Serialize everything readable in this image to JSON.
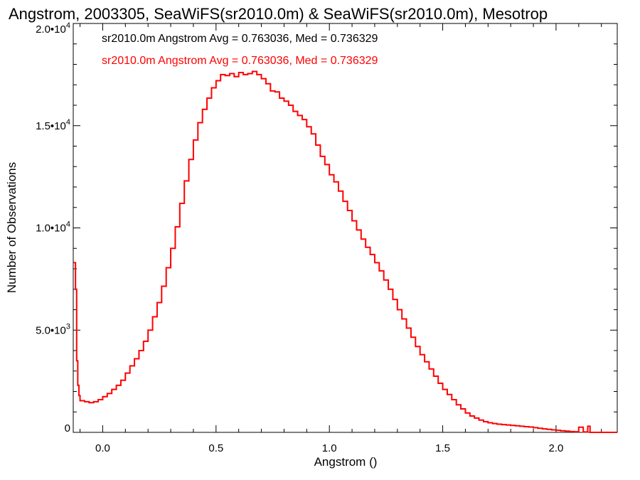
{
  "chart_data": {
    "type": "histogram",
    "title": "Angstrom, 2003305, SeaWiFS(sr2010.0m) & SeaWiFS(sr2010.0m), Mesotrop",
    "xlabel": "Angstrom ()",
    "ylabel": "Number of Observations",
    "xlim": [
      -0.13,
      2.27
    ],
    "ylim": [
      0,
      20000
    ],
    "x_ticks": [
      {
        "value": 0.0,
        "label": "0.0"
      },
      {
        "value": 0.5,
        "label": "0.5"
      },
      {
        "value": 1.0,
        "label": "1.0"
      },
      {
        "value": 1.5,
        "label": "1.5"
      },
      {
        "value": 2.0,
        "label": "2.0"
      }
    ],
    "y_ticks": [
      {
        "value": 0,
        "mantissa": "0",
        "exp": ""
      },
      {
        "value": 5000,
        "mantissa": "5.0•10",
        "exp": "3"
      },
      {
        "value": 10000,
        "mantissa": "1.0•10",
        "exp": "4"
      },
      {
        "value": 15000,
        "mantissa": "1.5•10",
        "exp": "4"
      },
      {
        "value": 20000,
        "mantissa": "2.0•10",
        "exp": "4"
      }
    ],
    "grid": false,
    "legend": [
      {
        "text": "sr2010.0m Angstrom Avg = 0.763036, Med = 0.736329",
        "color": "#000000"
      },
      {
        "text": "sr2010.0m Angstrom Avg = 0.763036, Med = 0.736329",
        "color": "#ff0000"
      }
    ],
    "series": [
      {
        "color": "#ff0000",
        "points": [
          [
            -0.13,
            8300
          ],
          [
            -0.12,
            7000
          ],
          [
            -0.115,
            3500
          ],
          [
            -0.11,
            2300
          ],
          [
            -0.105,
            1800
          ],
          [
            -0.1,
            1550
          ],
          [
            -0.08,
            1500
          ],
          [
            -0.06,
            1450
          ],
          [
            -0.04,
            1500
          ],
          [
            -0.02,
            1600
          ],
          [
            0.0,
            1750
          ],
          [
            0.02,
            1900
          ],
          [
            0.04,
            2100
          ],
          [
            0.06,
            2300
          ],
          [
            0.08,
            2550
          ],
          [
            0.1,
            2900
          ],
          [
            0.12,
            3250
          ],
          [
            0.14,
            3600
          ],
          [
            0.16,
            4000
          ],
          [
            0.18,
            4450
          ],
          [
            0.2,
            5000
          ],
          [
            0.22,
            5650
          ],
          [
            0.24,
            6350
          ],
          [
            0.26,
            7150
          ],
          [
            0.28,
            8050
          ],
          [
            0.3,
            9000
          ],
          [
            0.32,
            10050
          ],
          [
            0.34,
            11200
          ],
          [
            0.36,
            12300
          ],
          [
            0.38,
            13350
          ],
          [
            0.4,
            14300
          ],
          [
            0.42,
            15150
          ],
          [
            0.44,
            15800
          ],
          [
            0.46,
            16350
          ],
          [
            0.48,
            16850
          ],
          [
            0.5,
            17200
          ],
          [
            0.52,
            17500
          ],
          [
            0.54,
            17450
          ],
          [
            0.56,
            17550
          ],
          [
            0.58,
            17400
          ],
          [
            0.6,
            17600
          ],
          [
            0.62,
            17500
          ],
          [
            0.64,
            17550
          ],
          [
            0.66,
            17650
          ],
          [
            0.68,
            17500
          ],
          [
            0.7,
            17300
          ],
          [
            0.72,
            17050
          ],
          [
            0.74,
            16700
          ],
          [
            0.76,
            16650
          ],
          [
            0.78,
            16350
          ],
          [
            0.8,
            16200
          ],
          [
            0.82,
            16000
          ],
          [
            0.84,
            15700
          ],
          [
            0.86,
            15500
          ],
          [
            0.88,
            15300
          ],
          [
            0.9,
            14950
          ],
          [
            0.92,
            14600
          ],
          [
            0.94,
            14050
          ],
          [
            0.96,
            13500
          ],
          [
            0.98,
            13100
          ],
          [
            1.0,
            12600
          ],
          [
            1.02,
            12250
          ],
          [
            1.04,
            11800
          ],
          [
            1.06,
            11300
          ],
          [
            1.08,
            10850
          ],
          [
            1.1,
            10350
          ],
          [
            1.12,
            9900
          ],
          [
            1.14,
            9450
          ],
          [
            1.16,
            9050
          ],
          [
            1.18,
            8700
          ],
          [
            1.2,
            8300
          ],
          [
            1.22,
            7900
          ],
          [
            1.24,
            7450
          ],
          [
            1.26,
            7000
          ],
          [
            1.28,
            6500
          ],
          [
            1.3,
            6000
          ],
          [
            1.32,
            5550
          ],
          [
            1.34,
            5100
          ],
          [
            1.36,
            4650
          ],
          [
            1.38,
            4200
          ],
          [
            1.4,
            3800
          ],
          [
            1.42,
            3450
          ],
          [
            1.44,
            3100
          ],
          [
            1.46,
            2750
          ],
          [
            1.48,
            2400
          ],
          [
            1.5,
            2100
          ],
          [
            1.52,
            1850
          ],
          [
            1.54,
            1600
          ],
          [
            1.56,
            1350
          ],
          [
            1.58,
            1150
          ],
          [
            1.6,
            950
          ],
          [
            1.62,
            800
          ],
          [
            1.64,
            700
          ],
          [
            1.66,
            600
          ],
          [
            1.68,
            520
          ],
          [
            1.7,
            470
          ],
          [
            1.72,
            430
          ],
          [
            1.74,
            400
          ],
          [
            1.76,
            380
          ],
          [
            1.78,
            360
          ],
          [
            1.8,
            340
          ],
          [
            1.82,
            320
          ],
          [
            1.84,
            300
          ],
          [
            1.86,
            280
          ],
          [
            1.88,
            260
          ],
          [
            1.9,
            230
          ],
          [
            1.92,
            200
          ],
          [
            1.94,
            170
          ],
          [
            1.96,
            150
          ],
          [
            1.98,
            120
          ],
          [
            2.0,
            100
          ],
          [
            2.02,
            80
          ],
          [
            2.04,
            60
          ],
          [
            2.06,
            40
          ],
          [
            2.08,
            30
          ],
          [
            2.1,
            250
          ],
          [
            2.12,
            20
          ],
          [
            2.14,
            300
          ],
          [
            2.15,
            0
          ],
          [
            2.27,
            0
          ]
        ]
      }
    ]
  }
}
